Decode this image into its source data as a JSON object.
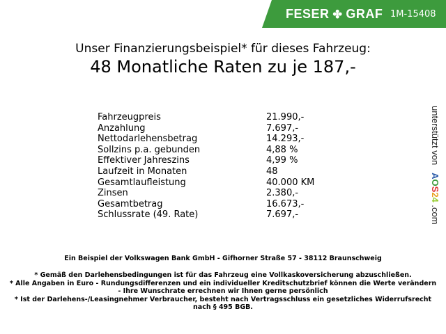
{
  "header": {
    "brand_left": "FESER",
    "brand_right": "GRAF",
    "brand_icon": "clover-icon",
    "vehicle_id": "1M-15408",
    "accent": "#3d9b3d"
  },
  "title": {
    "line1": "Unser Finanzierungsbeispiel* für dieses Fahrzeug:",
    "line2": "48 Monatliche Raten zu je 187,-"
  },
  "rows": [
    {
      "label": "Fahrzeugpreis",
      "value": "21.990,-"
    },
    {
      "label": "Anzahlung",
      "value": "7.697,-"
    },
    {
      "label": "Nettodarlehensbetrag",
      "value": "14.293,-"
    },
    {
      "label": "Sollzins p.a. gebunden",
      "value": "4,88 %"
    },
    {
      "label": "Effektiver Jahreszins",
      "value": "4,99 %"
    },
    {
      "label": "Laufzeit in Monaten",
      "value": "48"
    },
    {
      "label": "Gesamtlaufleistung",
      "value": "40.000 KM"
    },
    {
      "label": "Zinsen",
      "value": "2.380,-"
    },
    {
      "label": "Gesamtbetrag",
      "value": "16.673,-"
    },
    {
      "label": "Schlussrate (49. Rate)",
      "value": "7.697,-"
    }
  ],
  "side": {
    "text": "unterstützt von",
    "logo": "AOS24",
    "suffix": ".com"
  },
  "footer": {
    "bank": "Ein Beispiel der Volkswagen Bank GmbH - Gifhorner Straße 57 - 38112 Braunschweig",
    "note1": "* Gemäß den Darlehensbedingungen ist für das Fahrzeug eine Vollkaskoversicherung abzuschließen.",
    "note2a": "* Alle Angaben in Euro - Rundungsdifferenzen und ein individueller Kreditschutzbrief können die Werte verändern",
    "note2b": "- Ihre Wunschrate errechnen wir Ihnen gerne persönlich",
    "note3a": "* Ist der Darlehens-/Leasingnehmer Verbraucher, besteht nach Vertragsschluss ein gesetzliches Widerrufsrecht",
    "note3b": "nach § 495 BGB."
  }
}
